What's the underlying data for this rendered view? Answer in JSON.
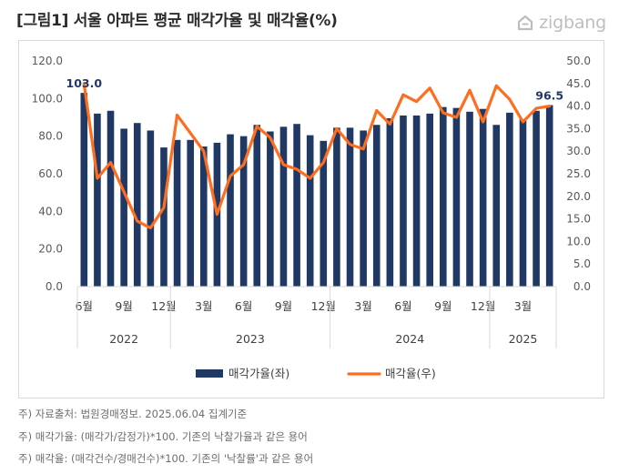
{
  "header": {
    "title": "[그림1] 서울 아파트 평균 매각가율 및 매각율(%)",
    "logo_text": "zigbang",
    "logo_icon": "zigbang-house-icon"
  },
  "colors": {
    "bar": "#1f3864",
    "line": "#ff6d1f",
    "axis_text": "#595959",
    "grid": "#d9d9d9"
  },
  "chart_data": {
    "type": "bar",
    "x": [
      "2022-06",
      "2022-07",
      "2022-08",
      "2022-09",
      "2022-10",
      "2022-11",
      "2022-12",
      "2023-01",
      "2023-02",
      "2023-03",
      "2023-04",
      "2023-05",
      "2023-06",
      "2023-07",
      "2023-08",
      "2023-09",
      "2023-10",
      "2023-11",
      "2023-12",
      "2024-01",
      "2024-02",
      "2024-03",
      "2024-04",
      "2024-05",
      "2024-06",
      "2024-07",
      "2024-08",
      "2024-09",
      "2024-10",
      "2024-11",
      "2024-12",
      "2025-01",
      "2025-02",
      "2025-03",
      "2025-04",
      "2025-05"
    ],
    "series": [
      {
        "name": "매각가율(좌)",
        "type": "bar",
        "axis": "left",
        "values": [
          103.0,
          92.0,
          93.5,
          84.0,
          87.0,
          83.0,
          74.0,
          78.0,
          78.0,
          74.5,
          76.5,
          81.0,
          80.0,
          86.0,
          82.5,
          85.0,
          86.5,
          80.5,
          77.5,
          84.5,
          84.5,
          83.0,
          86.0,
          89.5,
          91.0,
          91.0,
          92.0,
          95.5,
          95.0,
          93.0,
          94.5,
          86.0,
          92.5,
          89.0,
          93.5,
          96.5
        ]
      },
      {
        "name": "매각율(우)",
        "type": "line",
        "axis": "right",
        "values": [
          45.0,
          24.0,
          27.5,
          21.0,
          14.5,
          13.0,
          17.5,
          38.0,
          34.0,
          30.0,
          16.0,
          24.5,
          27.0,
          35.5,
          33.0,
          27.0,
          26.0,
          24.0,
          27.5,
          35.0,
          31.5,
          30.5,
          39.0,
          36.0,
          42.5,
          41.0,
          44.0,
          38.5,
          37.5,
          43.5,
          36.5,
          44.5,
          41.5,
          36.5,
          39.5,
          40.0
        ]
      }
    ],
    "ylim_left": [
      0,
      120
    ],
    "ylim_right": [
      0,
      50
    ],
    "yticks_left": [
      "0.0",
      "20.0",
      "40.0",
      "60.0",
      "80.0",
      "100.0",
      "120.0"
    ],
    "yticks_right": [
      "0.0",
      "5.0",
      "10.0",
      "15.0",
      "20.0",
      "25.0",
      "30.0",
      "35.0",
      "40.0",
      "45.0",
      "50.0"
    ],
    "month_labels": [
      {
        "index": 0,
        "label": "6월"
      },
      {
        "index": 3,
        "label": "9월"
      },
      {
        "index": 6,
        "label": "12월"
      },
      {
        "index": 9,
        "label": "3월"
      },
      {
        "index": 12,
        "label": "6월"
      },
      {
        "index": 15,
        "label": "9월"
      },
      {
        "index": 18,
        "label": "12월"
      },
      {
        "index": 21,
        "label": "3월"
      },
      {
        "index": 24,
        "label": "6월"
      },
      {
        "index": 27,
        "label": "9월"
      },
      {
        "index": 30,
        "label": "12월"
      },
      {
        "index": 33,
        "label": "3월"
      }
    ],
    "year_groups": [
      {
        "label": "2022",
        "start": 0,
        "end": 6
      },
      {
        "label": "2023",
        "start": 7,
        "end": 18
      },
      {
        "label": "2024",
        "start": 19,
        "end": 30
      },
      {
        "label": "2025",
        "start": 31,
        "end": 35
      }
    ],
    "data_labels": [
      {
        "series": 0,
        "index": 0,
        "text": "103.0"
      },
      {
        "series": 0,
        "index": 35,
        "text": "96.5"
      }
    ],
    "legend": [
      "매각가율(좌)",
      "매각율(우)"
    ],
    "legend_position": "bottom",
    "grid": false
  },
  "notes": [
    "주) 자료출처: 법원경매정보. 2025.06.04 집계기준",
    "주) 매각가율: (매각가/감정가)*100. 기존의 낙찰가율과 같은 용어",
    "주) 매각율: (매각건수/경매건수)*100. 기존의 '낙찰률'과 같은 용어"
  ]
}
